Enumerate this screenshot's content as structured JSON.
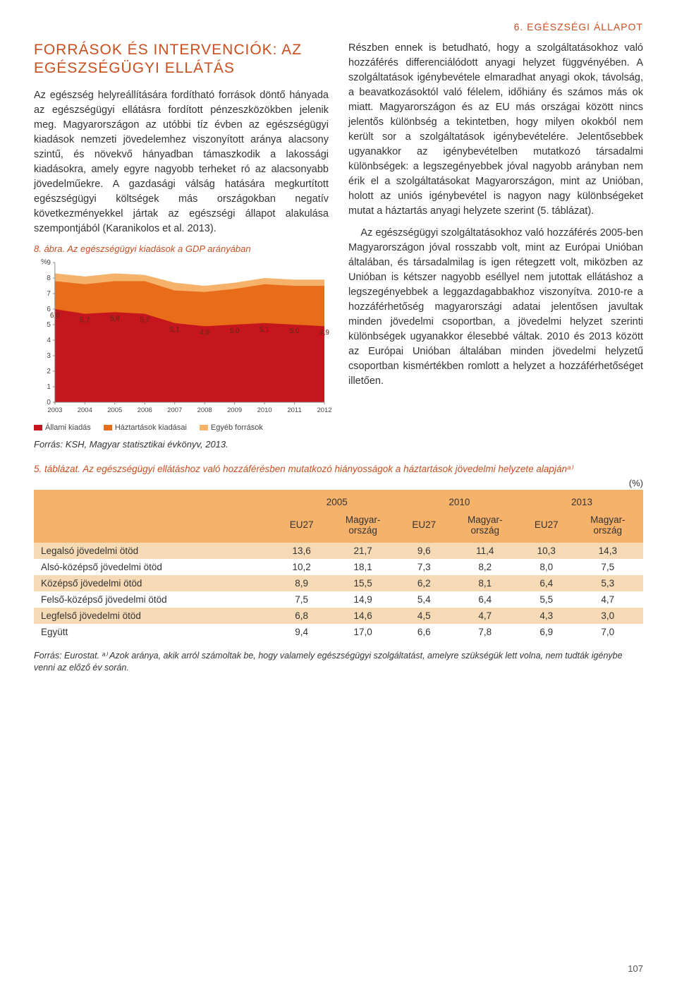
{
  "chapter_header": "6. EGÉSZSÉGI ÁLLAPOT",
  "section_title": "FORRÁSOK ÉS INTERVENCIÓK: AZ EGÉSZSÉGÜGYI ELLÁTÁS",
  "left_paragraph": "Az egészség helyreállítására fordítható források döntő hányada az egészségügyi ellátásra fordított pénzeszközökben jelenik meg. Magyarországon az utóbbi tíz évben az egészségügyi kiadások nemzeti jövedelemhez viszonyított aránya alacsony szintű, és növekvő hányadban támaszkodik a lakossági kiadásokra, amely egyre nagyobb terheket ró az alacsonyabb jövedelműekre. A gazdasági válság hatására megkurtított egészségügyi költségek más országokban negatív következményekkel jártak az egészségi állapot alakulása szempontjából (Karanikolos et al. 2013).",
  "right_paragraph_1": "Részben ennek is betudható, hogy a szolgáltatásokhoz való hozzáférés differenciálódott anyagi helyzet függvényében. A szolgáltatások igénybevétele elmaradhat anyagi okok, távolság, a beavatkozásoktól való félelem, időhiány és számos más ok miatt. Magyarországon és az EU más országai között nincs jelentős különbség a tekintetben, hogy milyen okokból nem került sor a szolgáltatások igénybevételére. Jelentősebbek ugyanakkor az igénybevételben mutatkozó társadalmi különbségek: a legszegényebbek jóval nagyobb arányban nem érik el a szolgáltatásokat Magyarországon, mint az Unióban, holott az uniós igénybevétel is nagyon nagy különbségeket mutat a háztartás anyagi helyzete szerint (5. táblázat).",
  "right_paragraph_2": "Az egészségügyi szolgáltatásokhoz való hozzáférés 2005-ben Magyarországon jóval rosszabb volt, mint az Európai Unióban általában, és társadalmilag is igen rétegzett volt, miközben az Unióban is kétszer nagyobb eséllyel nem jutottak ellátáshoz a legszegényebbek a leggazdagabbakhoz viszonyítva. 2010-re a hozzáférhetőség magyarországi adatai jelentősen javultak minden jövedelmi csoportban, a jövedelmi helyzet szerinti különbségek ugyanakkor élesebbé váltak. 2010 és 2013 között az Európai Unióban általában minden jövedelmi helyzetű csoportban kismértékben romlott a helyzet a hozzáférhetőséget illetően.",
  "figure": {
    "caption": "8. ábra. Az egészségügyi kiadások a GDP arányában",
    "y_unit": "%",
    "y_ticks": [
      "9",
      "8",
      "7",
      "6",
      "5",
      "4",
      "3",
      "2",
      "1",
      "0"
    ],
    "x_labels": [
      "2003",
      "2004",
      "2005",
      "2006",
      "2007",
      "2008",
      "2009",
      "2010",
      "2011",
      "2012"
    ],
    "series_a_name": "Állami kiadás",
    "series_b_name": "Háztartások kiadásai",
    "series_c_name": "Egyéb források",
    "series_a_values": [
      6.0,
      5.7,
      5.8,
      5.7,
      5.1,
      4.9,
      5.0,
      5.1,
      5.0,
      4.9
    ],
    "series_total_values": [
      8.3,
      8.1,
      8.3,
      8.2,
      7.7,
      7.5,
      7.7,
      8.0,
      7.9,
      7.9
    ],
    "series_mid_values": [
      7.8,
      7.6,
      7.8,
      7.8,
      7.2,
      7.1,
      7.3,
      7.6,
      7.5,
      7.5
    ],
    "labels_on_line": [
      "6,0",
      "5,7",
      "5,8",
      "5,7",
      "5,1",
      "4,9",
      "5,0",
      "5,1",
      "5,0",
      "4,9"
    ],
    "colors": {
      "series_a": "#c4161c",
      "series_b": "#e86c1a",
      "series_c": "#f6b26b",
      "axis": "#888",
      "bg": "#ffffff",
      "label_text": "#5b2b15"
    },
    "ylim": [
      0,
      9
    ],
    "source": "Forrás: KSH, Magyar statisztikai évkönyv, 2013."
  },
  "table": {
    "caption": "5. táblázat. Az egészségügyi ellátáshoz való hozzáférésben mutatkozó hiányosságok a háztartások jövedelmi helyzete alapjánᵃ⁾",
    "unit": "(%)",
    "years": [
      "2005",
      "2010",
      "2013"
    ],
    "sub_headers": [
      "EU27",
      "Magyar-ország",
      "EU27",
      "Magyar-ország",
      "EU27",
      "Magyar-ország"
    ],
    "rows": [
      {
        "label": "Legalsó jövedelmi ötöd",
        "cells": [
          "13,6",
          "21,7",
          "9,6",
          "11,4",
          "10,3",
          "14,3"
        ],
        "bg": "#f6d9b5"
      },
      {
        "label": "Alsó-középső jövedelmi ötöd",
        "cells": [
          "10,2",
          "18,1",
          "7,3",
          "8,2",
          "8,0",
          "7,5"
        ],
        "bg": "#ffffff"
      },
      {
        "label": "Középső jövedelmi ötöd",
        "cells": [
          "8,9",
          "15,5",
          "6,2",
          "8,1",
          "6,4",
          "5,3"
        ],
        "bg": "#f6d9b5"
      },
      {
        "label": "Felső-középső jövedelmi ötöd",
        "cells": [
          "7,5",
          "14,9",
          "5,4",
          "6,4",
          "5,5",
          "4,7"
        ],
        "bg": "#ffffff"
      },
      {
        "label": "Legfelső jövedelmi ötöd",
        "cells": [
          "6,8",
          "14,6",
          "4,5",
          "4,7",
          "4,3",
          "3,0"
        ],
        "bg": "#f6d9b5"
      },
      {
        "label": "Együtt",
        "cells": [
          "9,4",
          "17,0",
          "6,6",
          "7,8",
          "6,9",
          "7,0"
        ],
        "bg": "#ffffff"
      }
    ],
    "header_bg": "#f6b26b",
    "footnote": "Forrás: Eurostat.  ᵃ⁾ Azok aránya, akik arról számoltak be, hogy valamely egészségügyi szolgáltatást, amelyre szükségük lett volna, nem tudták igénybe venni az előző év során."
  },
  "page_number": "107"
}
